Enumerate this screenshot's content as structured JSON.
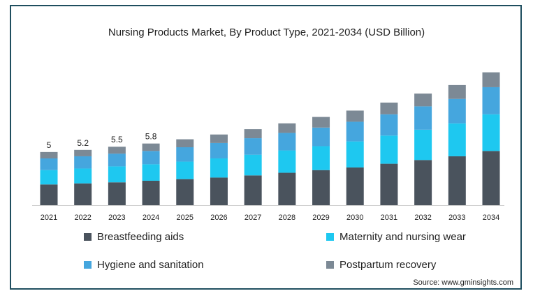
{
  "chart_data": {
    "type": "bar",
    "stacked": true,
    "title": "Nursing Products Market, By Product Type, 2021-2034 (USD Billion)",
    "xlabel": "",
    "ylabel": "",
    "grid": false,
    "legend_placement": "bottom",
    "categories": [
      "2021",
      "2022",
      "2023",
      "2024",
      "2025",
      "2026",
      "2027",
      "2028",
      "2029",
      "2030",
      "2031",
      "2032",
      "2033",
      "2034"
    ],
    "series": [
      {
        "name": "Breastfeeding aids",
        "color": "#4a535d",
        "values": [
          1.95,
          2.05,
          2.15,
          2.3,
          2.45,
          2.6,
          2.8,
          3.05,
          3.3,
          3.55,
          3.9,
          4.25,
          4.6,
          5.1
        ]
      },
      {
        "name": "Maternity and nursing wear",
        "color": "#1ec8f0",
        "values": [
          1.35,
          1.4,
          1.5,
          1.55,
          1.65,
          1.8,
          1.95,
          2.1,
          2.25,
          2.45,
          2.65,
          2.85,
          3.1,
          3.45
        ]
      },
      {
        "name": "Hygiene and sanitation",
        "color": "#45a6de",
        "values": [
          1.1,
          1.15,
          1.2,
          1.25,
          1.35,
          1.45,
          1.55,
          1.65,
          1.75,
          1.85,
          2.0,
          2.2,
          2.3,
          2.55
        ]
      },
      {
        "name": "Postpartum recovery",
        "color": "#7c8995",
        "values": [
          0.6,
          0.6,
          0.65,
          0.7,
          0.75,
          0.8,
          0.85,
          0.9,
          1.0,
          1.05,
          1.1,
          1.2,
          1.3,
          1.4
        ]
      }
    ],
    "data_labels": [
      "5",
      "5.2",
      "5.5",
      "5.8",
      "",
      "",
      "",
      "",
      "",
      "",
      "",
      "",
      "",
      ""
    ],
    "ylim": [
      0,
      13
    ]
  },
  "source": "Source: www.gminsights.com"
}
